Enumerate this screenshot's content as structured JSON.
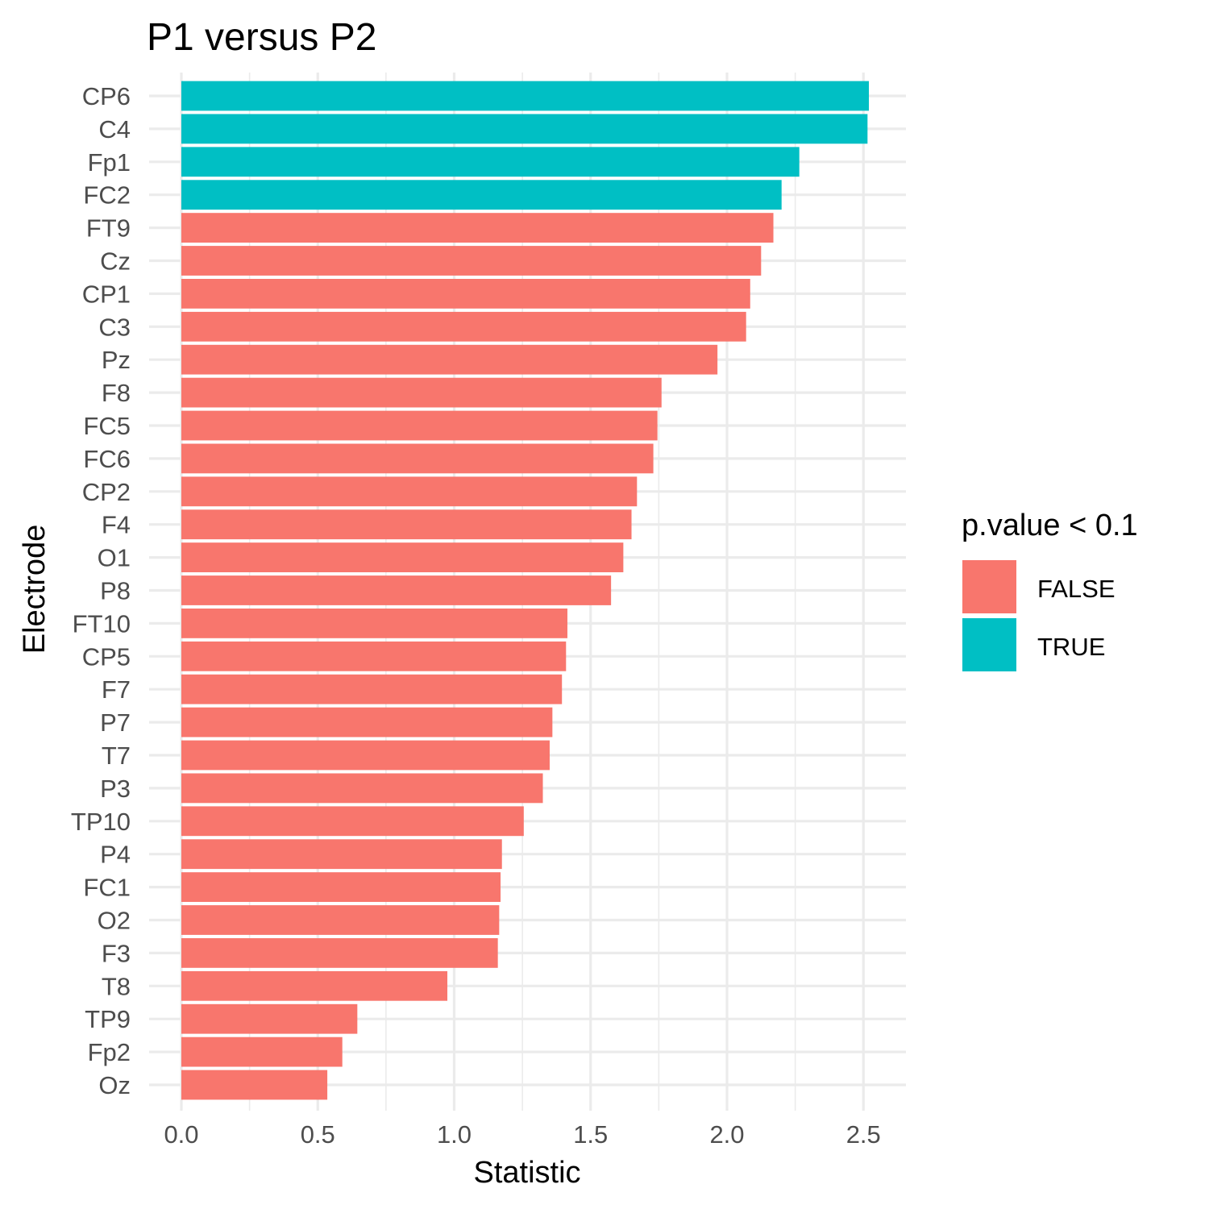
{
  "chart_data": {
    "type": "bar",
    "orientation": "horizontal",
    "title": "P1 versus P2",
    "xlabel": "Statistic",
    "ylabel": "Electrode",
    "xlim": [
      0,
      2.65
    ],
    "x_ticks": [
      "0.0",
      "0.5",
      "1.0",
      "1.5",
      "2.0",
      "2.5"
    ],
    "x_tick_values": [
      0,
      0.5,
      1.0,
      1.5,
      2.0,
      2.5
    ],
    "grid": true,
    "legend": {
      "title": "p.value < 0.1",
      "placement": "right",
      "entries": [
        {
          "label": "FALSE",
          "color": "#F8766D"
        },
        {
          "label": "TRUE",
          "color": "#00BFC4"
        }
      ]
    },
    "categories": [
      "CP6",
      "C4",
      "Fp1",
      "FC2",
      "FT9",
      "Cz",
      "CP1",
      "C3",
      "Pz",
      "F8",
      "FC5",
      "FC6",
      "CP2",
      "F4",
      "O1",
      "P8",
      "FT10",
      "CP5",
      "F7",
      "P7",
      "T7",
      "P3",
      "TP10",
      "P4",
      "FC1",
      "O2",
      "F3",
      "T8",
      "TP9",
      "Fp2",
      "Oz"
    ],
    "values": [
      2.52,
      2.515,
      2.265,
      2.2,
      2.17,
      2.125,
      2.085,
      2.07,
      1.965,
      1.76,
      1.745,
      1.73,
      1.67,
      1.65,
      1.62,
      1.575,
      1.415,
      1.41,
      1.395,
      1.36,
      1.35,
      1.325,
      1.255,
      1.175,
      1.17,
      1.165,
      1.16,
      0.975,
      0.645,
      0.59,
      0.535
    ],
    "significant": [
      true,
      true,
      true,
      true,
      false,
      false,
      false,
      false,
      false,
      false,
      false,
      false,
      false,
      false,
      false,
      false,
      false,
      false,
      false,
      false,
      false,
      false,
      false,
      false,
      false,
      false,
      false,
      false,
      false,
      false,
      false
    ]
  }
}
